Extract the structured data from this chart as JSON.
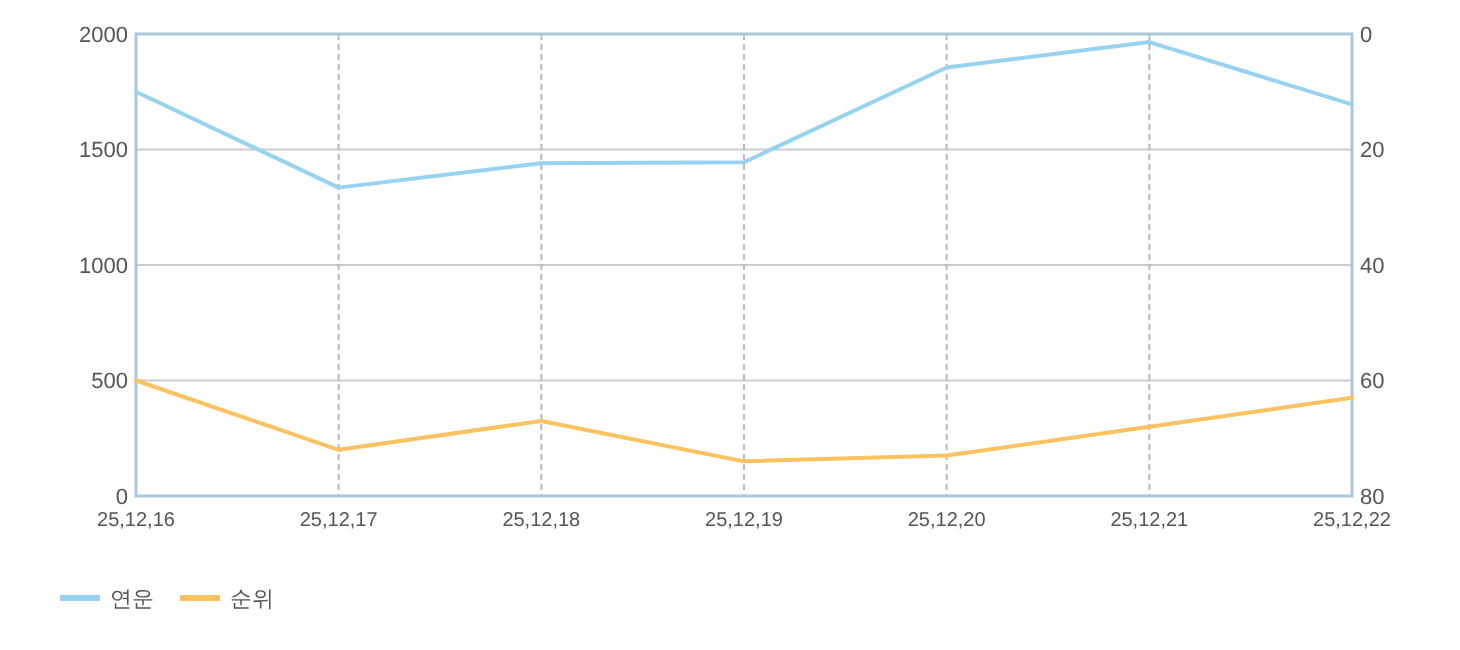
{
  "chart_data": {
    "type": "line",
    "categories": [
      "25,12,16",
      "25,12,17",
      "25,12,18",
      "25,12,19",
      "25,12,20",
      "25,12,21",
      "25,12,22"
    ],
    "series": [
      {
        "name": "연운",
        "color": "#97d3f0",
        "values": [
          1750,
          1335,
          1440,
          1445,
          1855,
          1965,
          1695
        ]
      },
      {
        "name": "순위",
        "color": "#fcc260",
        "axis": "y2",
        "values": [
          60,
          72,
          67,
          74,
          73,
          68,
          63
        ]
      }
    ],
    "ylim": [
      0,
      2000
    ],
    "yticks": [
      0,
      500,
      1000,
      1500,
      2000
    ],
    "y2lim": [
      80,
      0
    ],
    "y2ticks": [
      0,
      20,
      40,
      60,
      80
    ],
    "grid": true,
    "legend": "bottom left",
    "marker": "none",
    "line_style": "solid"
  }
}
